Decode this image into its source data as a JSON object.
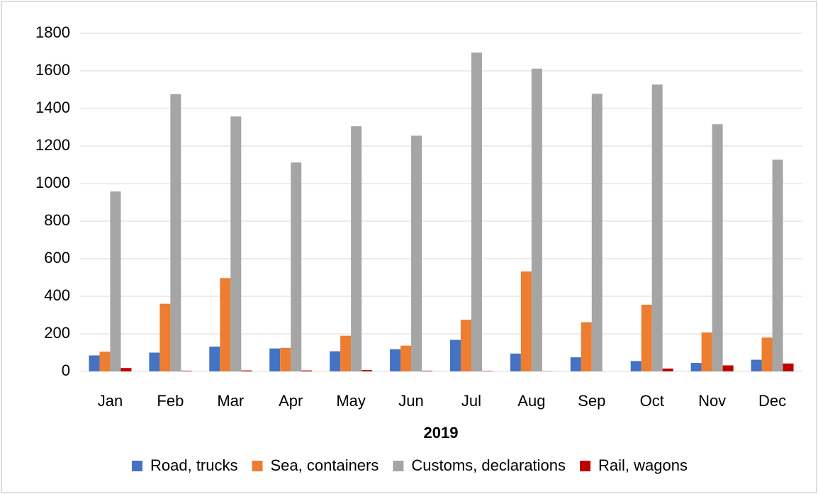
{
  "chart_data": {
    "type": "bar",
    "x_label": "2019",
    "categories": [
      "Jan",
      "Feb",
      "Mar",
      "Apr",
      "May",
      "Jun",
      "Jul",
      "Aug",
      "Sep",
      "Oct",
      "Nov",
      "Dec"
    ],
    "series": [
      {
        "name": "Road, trucks",
        "color": "#4472c4",
        "values": [
          85,
          100,
          132,
          122,
          107,
          118,
          168,
          95,
          75,
          55,
          45,
          62
        ]
      },
      {
        "name": "Sea, containers",
        "color": "#ed7d31",
        "values": [
          105,
          360,
          497,
          125,
          190,
          137,
          275,
          532,
          262,
          355,
          207,
          180
        ]
      },
      {
        "name": "Customs, declarations",
        "color": "#a5a5a5",
        "values": [
          958,
          1476,
          1357,
          1112,
          1305,
          1255,
          1697,
          1612,
          1478,
          1527,
          1316,
          1127
        ]
      },
      {
        "name": "Rail, wagons",
        "color": "#c00000",
        "values": [
          18,
          3,
          5,
          5,
          7,
          3,
          2,
          1,
          0,
          15,
          32,
          42
        ]
      }
    ],
    "ylim": [
      0,
      1800
    ],
    "yticks": [
      0,
      200,
      400,
      600,
      800,
      1000,
      1200,
      1400,
      1600,
      1800
    ],
    "grid": true,
    "legend": "bottom"
  }
}
